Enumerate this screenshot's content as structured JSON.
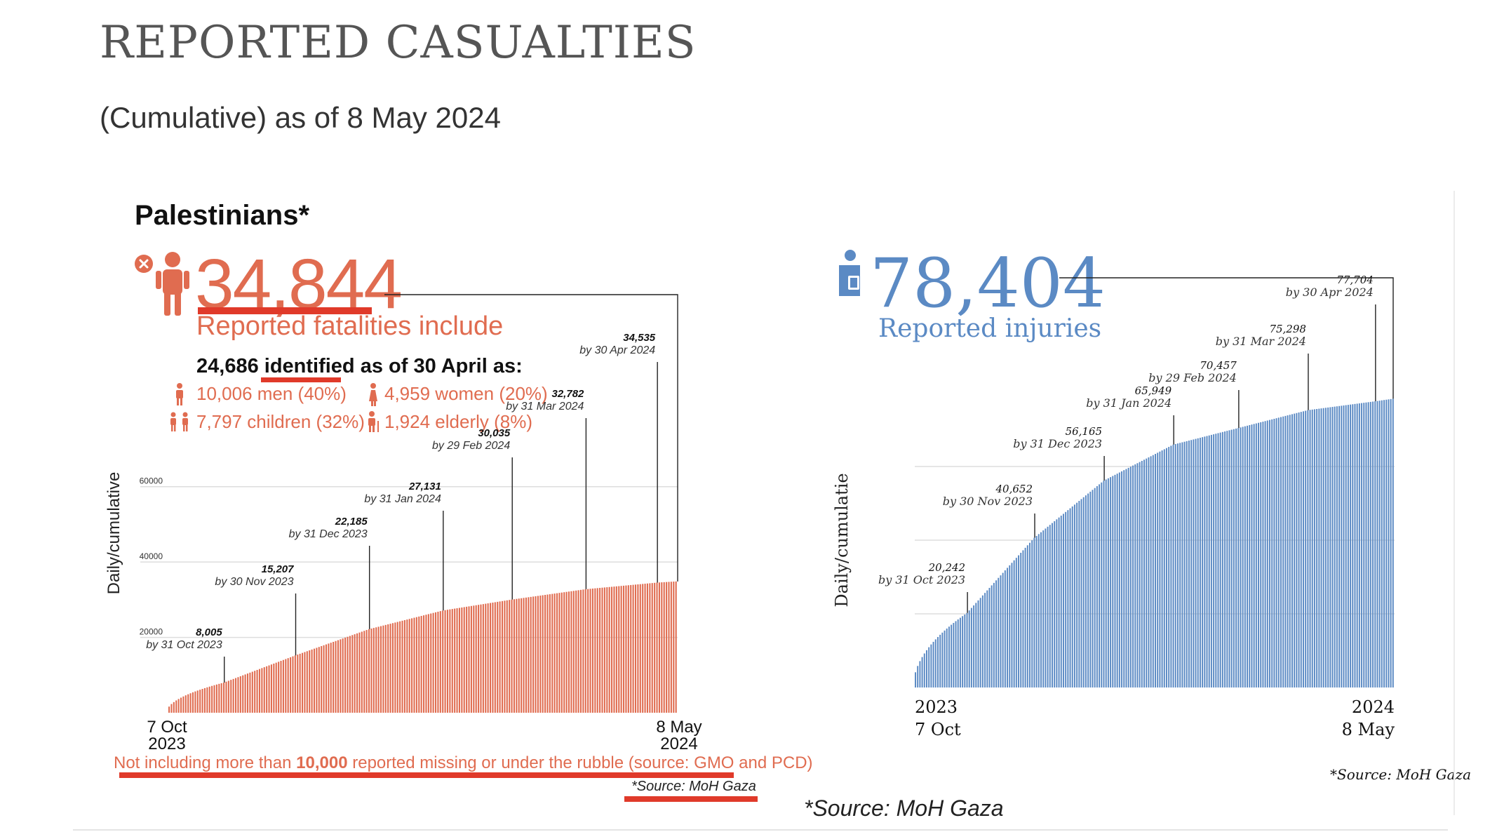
{
  "title": "REPORTED CASUALTIES",
  "subtitle": "(Cumulative) as of 8 May 2024",
  "palestinians_heading": "Palestinians*",
  "fatalities": {
    "total": "34,844",
    "label": "Reported fatalities include",
    "identified_count": "24,686",
    "identified_word": "identified",
    "identified_suffix": "as of 30 April as:",
    "breakdown": {
      "men": "10,006 men (40%)",
      "women": "4,959 women (20%)",
      "children": "7,797 children (32%)",
      "elderly": "1,924 elderly (8%)"
    },
    "missing_note_pre": "Not including more than ",
    "missing_note_bold": "10,000",
    "missing_note_post": " reported missing or under the rubble (source: GMO and PCD)",
    "source": "*Source: MoH Gaza"
  },
  "injuries": {
    "total": "78,404",
    "label": "Reported injuries",
    "source": "*Source: MoH Gaza"
  },
  "footer_source": "*Source: MoH Gaza",
  "colors": {
    "fatalities": "#e06c50",
    "injuries": "#5b8ac4",
    "highlight_underline": "#e03a2a"
  },
  "icons": [
    "person-fatality-icon",
    "person-injured-icon",
    "man-icon",
    "woman-icon",
    "children-icon",
    "elderly-icon"
  ],
  "chart_data": [
    {
      "type": "bar",
      "ylabel": "Daily/cumulative",
      "ylim": [
        0,
        70000
      ],
      "yticks": [
        "20000",
        "40000",
        "60000"
      ],
      "ytick_values": [
        20000,
        40000,
        60000
      ],
      "x_start_label": [
        "7 Oct",
        "2023"
      ],
      "x_end_label": [
        "8 May",
        "2024"
      ],
      "x_start": "2023-10-07",
      "x_end": "2024-05-08",
      "grid": true,
      "series": [
        {
          "x": [
            "2023-10-31",
            "2023-11-30",
            "2023-12-31",
            "2024-01-31",
            "2024-02-29",
            "2024-03-31",
            "2024-04-30",
            "2024-05-08"
          ],
          "values": [
            8005,
            15207,
            22185,
            27131,
            30035,
            32782,
            34535,
            34844
          ]
        }
      ],
      "annotations": [
        {
          "date": "2023-10-31",
          "value": "8,005",
          "label": "by 31 Oct 2023"
        },
        {
          "date": "2023-11-30",
          "value": "15,207",
          "label": "by 30 Nov 2023"
        },
        {
          "date": "2023-12-31",
          "value": "22,185",
          "label": "by 31 Dec 2023"
        },
        {
          "date": "2024-01-31",
          "value": "27,131",
          "label": "by 31 Jan 2024"
        },
        {
          "date": "2024-02-29",
          "value": "30,035",
          "label": "by 29 Feb 2024"
        },
        {
          "date": "2024-03-31",
          "value": "32,782",
          "label": "by 31 Mar 2024"
        },
        {
          "date": "2024-04-30",
          "value": "34,535",
          "label": "by 30 Apr 2024"
        }
      ]
    },
    {
      "type": "bar",
      "ylabel": "Daily/cumulatie",
      "ylim": [
        0,
        80000
      ],
      "x_start_label": [
        "2023",
        "7 Oct"
      ],
      "x_end_label": [
        "2024",
        "8 May"
      ],
      "x_start": "2023-10-07",
      "x_end": "2024-05-08",
      "grid": true,
      "series": [
        {
          "x": [
            "2023-10-31",
            "2023-11-30",
            "2023-12-31",
            "2024-01-31",
            "2024-02-29",
            "2024-03-31",
            "2024-04-30",
            "2024-05-08"
          ],
          "values": [
            20242,
            40652,
            56165,
            65949,
            70457,
            75298,
            77704,
            78404
          ]
        }
      ],
      "annotations": [
        {
          "date": "2023-10-31",
          "value": "20,242",
          "label": "by 31 Oct 2023"
        },
        {
          "date": "2023-11-30",
          "value": "40,652",
          "label": "by 30 Nov 2023"
        },
        {
          "date": "2023-12-31",
          "value": "56,165",
          "label": "by 31 Dec 2023"
        },
        {
          "date": "2024-01-31",
          "value": "65,949",
          "label": "by 31 Jan 2024"
        },
        {
          "date": "2024-02-29",
          "value": "70,457",
          "label": "by 29 Feb 2024"
        },
        {
          "date": "2024-03-31",
          "value": "75,298",
          "label": "by 31 Mar 2024"
        },
        {
          "date": "2024-04-30",
          "value": "77,704",
          "label": "by 30 Apr 2024"
        }
      ]
    }
  ]
}
